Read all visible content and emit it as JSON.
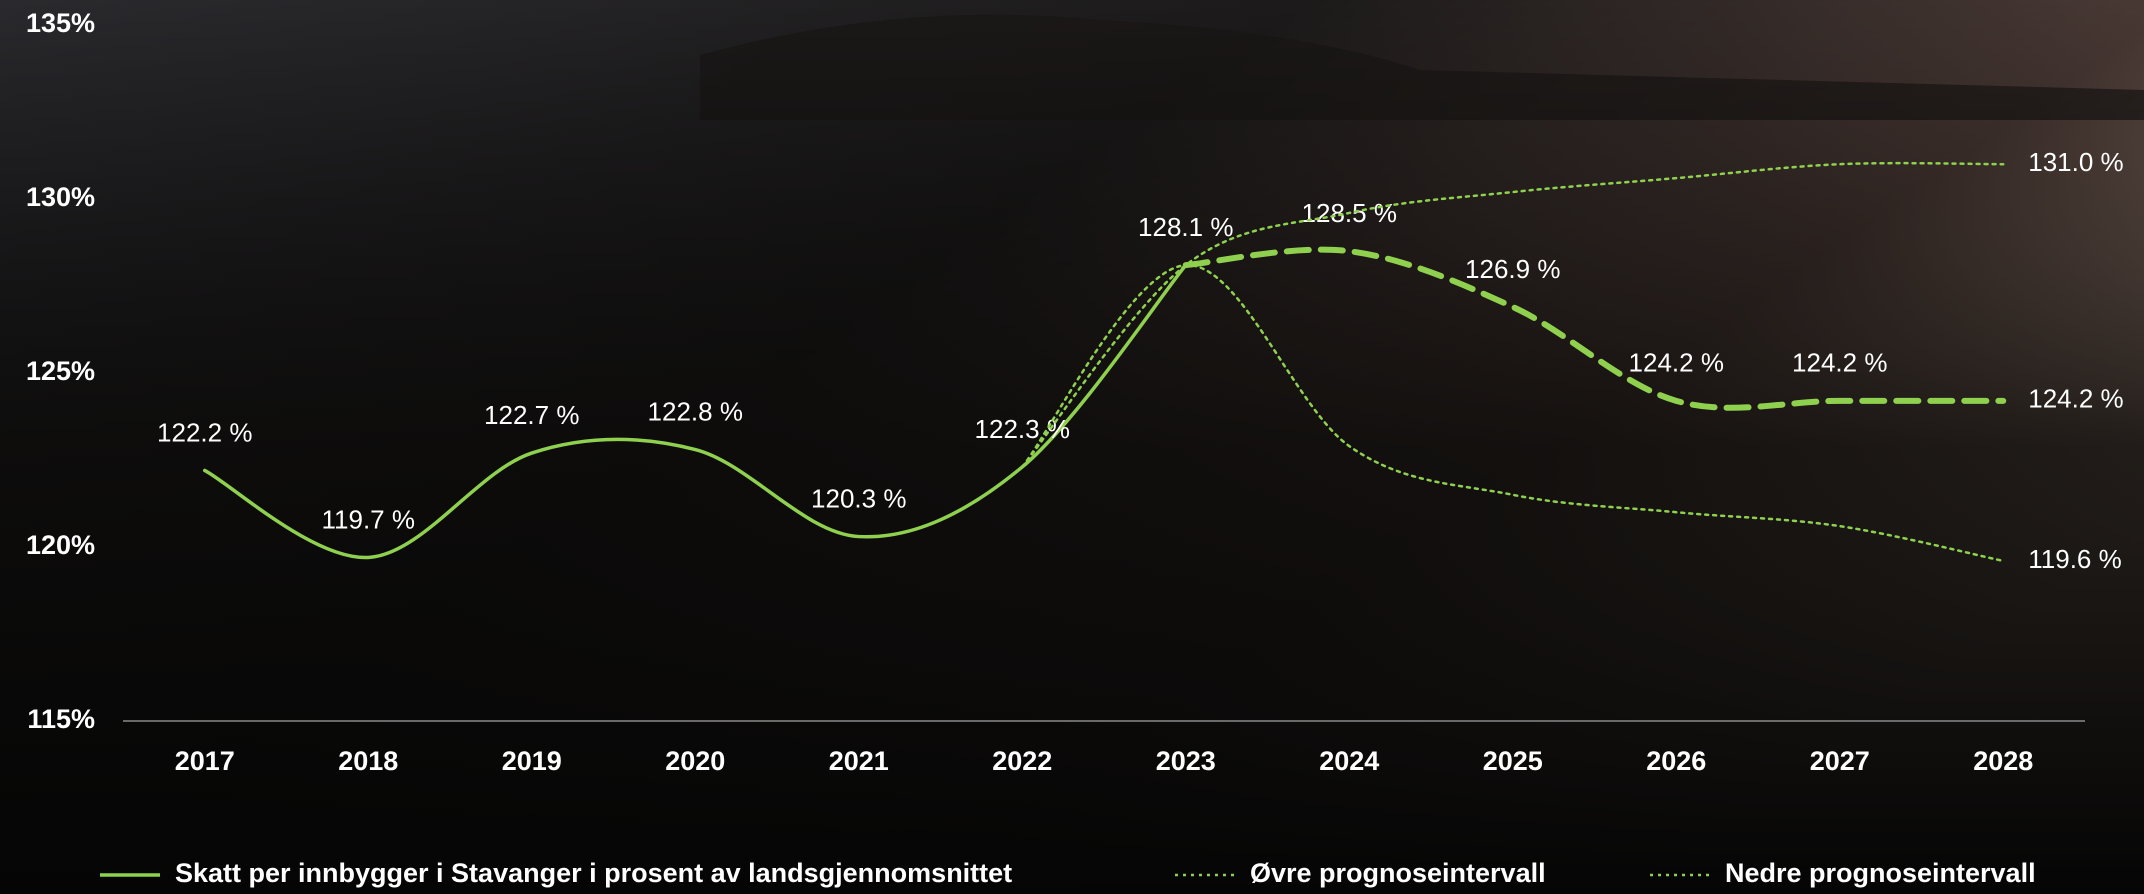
{
  "chart_data": {
    "type": "line",
    "categories": [
      "2017",
      "2018",
      "2019",
      "2020",
      "2021",
      "2022",
      "2023",
      "2024",
      "2025",
      "2026",
      "2027",
      "2028"
    ],
    "ylim": [
      115,
      135
    ],
    "yticks": [
      {
        "value": 115,
        "label": "115%"
      },
      {
        "value": 120,
        "label": "120%"
      },
      {
        "value": 125,
        "label": "125%"
      },
      {
        "value": 130,
        "label": "130%"
      },
      {
        "value": 135,
        "label": "135%"
      }
    ],
    "dashed_from": 6,
    "series": [
      {
        "name": "Skatt per innbygger i Stavanger i prosent av landsgjennomsnittet",
        "color": "#8fd14f",
        "style": "solid",
        "values": [
          122.2,
          119.7,
          122.7,
          122.8,
          120.3,
          122.3,
          128.1,
          128.5,
          126.9,
          124.2,
          124.2,
          124.2
        ],
        "value_labels": [
          "122.2 %",
          "119.7 %",
          "122.7 %",
          "122.8 %",
          "120.3 %",
          "122.3 %",
          "128.1 %",
          "128.5 %",
          "126.9 %",
          "124.2 %",
          "124.2 %",
          "124.2 %"
        ]
      },
      {
        "name": "Øvre prognoseintervall",
        "color": "#8fd14f",
        "style": "dotted",
        "values": [
          null,
          null,
          null,
          null,
          null,
          122.3,
          128.1,
          129.6,
          130.2,
          130.6,
          131.0,
          131.0
        ],
        "value_labels": [
          null,
          null,
          null,
          null,
          null,
          null,
          null,
          null,
          null,
          null,
          null,
          "131.0 %"
        ]
      },
      {
        "name": "Nedre prognoseintervall",
        "color": "#8fd14f",
        "style": "dotted",
        "values": [
          null,
          null,
          null,
          null,
          null,
          122.3,
          128.1,
          122.9,
          121.5,
          121.0,
          120.6,
          119.6
        ],
        "value_labels": [
          null,
          null,
          null,
          null,
          null,
          null,
          null,
          null,
          null,
          null,
          null,
          "119.6 %"
        ]
      }
    ]
  }
}
